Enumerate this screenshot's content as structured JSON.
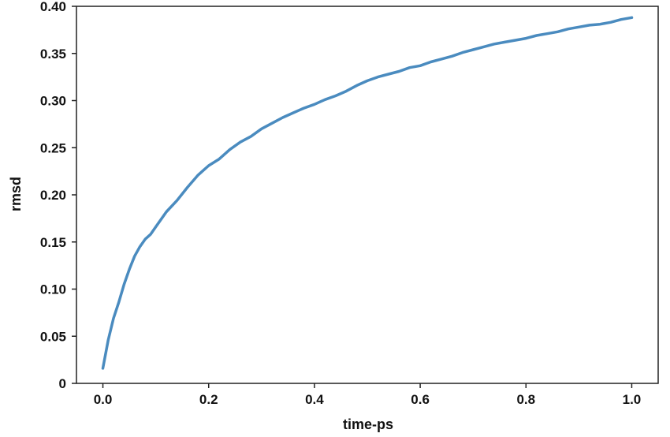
{
  "chart_data": {
    "type": "line",
    "xlabel": "time-ps",
    "ylabel": "rmsd",
    "xlim": [
      -0.05,
      1.05
    ],
    "ylim": [
      0,
      0.4
    ],
    "x_ticks": [
      0.0,
      0.2,
      0.4,
      0.6,
      0.8,
      1.0
    ],
    "x_tick_labels": [
      "0.0",
      "0.2",
      "0.4",
      "0.6",
      "0.8",
      "1.0"
    ],
    "y_ticks": [
      0,
      0.05,
      0.1,
      0.15,
      0.2,
      0.25,
      0.3,
      0.35,
      0.4
    ],
    "y_tick_labels": [
      "0",
      "0.05",
      "0.10",
      "0.15",
      "0.20",
      "0.25",
      "0.30",
      "0.35",
      "0.40"
    ],
    "grid": false,
    "series": [
      {
        "color": "#4a8bbf",
        "x": [
          0.0,
          0.01,
          0.02,
          0.03,
          0.04,
          0.05,
          0.06,
          0.07,
          0.08,
          0.09,
          0.1,
          0.12,
          0.14,
          0.16,
          0.18,
          0.2,
          0.22,
          0.24,
          0.26,
          0.28,
          0.3,
          0.32,
          0.34,
          0.36,
          0.38,
          0.4,
          0.42,
          0.44,
          0.46,
          0.48,
          0.5,
          0.52,
          0.54,
          0.56,
          0.58,
          0.6,
          0.62,
          0.64,
          0.66,
          0.68,
          0.7,
          0.72,
          0.74,
          0.76,
          0.78,
          0.8,
          0.82,
          0.84,
          0.86,
          0.88,
          0.9,
          0.92,
          0.94,
          0.96,
          0.98,
          1.0
        ],
        "y": [
          0.016,
          0.046,
          0.069,
          0.086,
          0.105,
          0.121,
          0.135,
          0.145,
          0.153,
          0.158,
          0.166,
          0.182,
          0.194,
          0.208,
          0.221,
          0.231,
          0.238,
          0.248,
          0.256,
          0.262,
          0.27,
          0.276,
          0.282,
          0.287,
          0.292,
          0.296,
          0.301,
          0.305,
          0.31,
          0.316,
          0.321,
          0.325,
          0.328,
          0.331,
          0.335,
          0.337,
          0.341,
          0.344,
          0.347,
          0.351,
          0.354,
          0.357,
          0.36,
          0.362,
          0.364,
          0.366,
          0.369,
          0.371,
          0.373,
          0.376,
          0.378,
          0.38,
          0.381,
          0.383,
          0.386,
          0.388
        ]
      }
    ]
  }
}
